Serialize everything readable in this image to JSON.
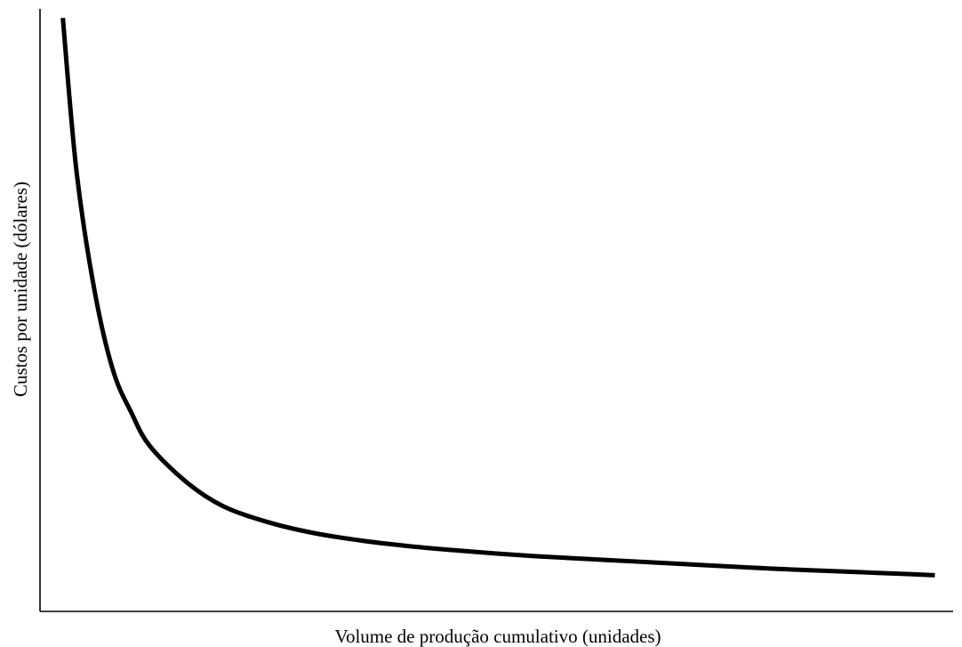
{
  "chart_data": {
    "type": "line",
    "title": "",
    "xlabel": "Volume de produção cumulativo (unidades)",
    "ylabel": "Custos por unidade (dólares)",
    "x_ticks": false,
    "y_ticks": false,
    "grid": false,
    "legend": "none",
    "xlim": [
      0,
      100
    ],
    "ylim": [
      0,
      100
    ],
    "series": [
      {
        "color": "#000000",
        "x": [
          2.5,
          4,
          6,
          8,
          10,
          12,
          16,
          20,
          25,
          30,
          35,
          40,
          45,
          50,
          55,
          60,
          65,
          70,
          75,
          80,
          85,
          90,
          95,
          98
        ],
        "y": [
          98.5,
          73,
          53,
          40,
          33,
          27.5,
          21.5,
          17.5,
          14.8,
          13,
          11.8,
          10.9,
          10.2,
          9.6,
          9.1,
          8.7,
          8.3,
          7.9,
          7.5,
          7.1,
          6.8,
          6.5,
          6.2,
          6.0
        ]
      }
    ]
  }
}
